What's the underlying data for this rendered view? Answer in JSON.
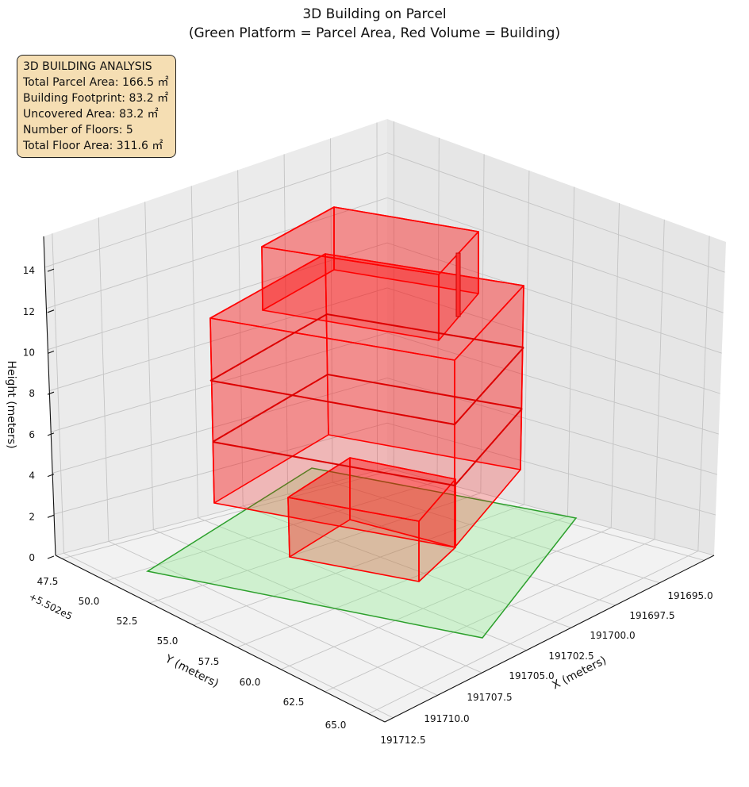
{
  "chart_data": {
    "type": "3d-polygons",
    "title": "3D Building on Parcel",
    "subtitle": "(Green Platform = Parcel Area, Red Volume = Building)",
    "xlabel": "X (meters)",
    "ylabel": "Y (meters)",
    "zlabel": "Height (meters)",
    "y_offset_text": "+5.502e5",
    "x_ticks": [
      "191695.0",
      "191697.5",
      "191700.0",
      "191702.5",
      "191705.0",
      "191707.5",
      "191710.0",
      "191712.5"
    ],
    "y_ticks": [
      "47.5",
      "50.0",
      "52.5",
      "55.0",
      "57.5",
      "60.0",
      "62.5",
      "65.0"
    ],
    "z_ticks": [
      "0",
      "2",
      "4",
      "6",
      "8",
      "10",
      "12",
      "14"
    ],
    "series": [
      {
        "name": "Parcel Area",
        "color": "#2ca02c",
        "fill": "#90ee90"
      },
      {
        "name": "Building",
        "color": "#ff0000",
        "fill": "#ff0000",
        "floors": 5
      }
    ],
    "info_box": {
      "heading": "3D BUILDING ANALYSIS",
      "lines": [
        "Total Parcel Area: 166.5 ㎡",
        "Building Footprint: 83.2 ㎡",
        "Uncovered Area: 83.2 ㎡",
        "Number of Floors: 5",
        "Total Floor Area: 311.6 ㎡"
      ]
    }
  }
}
